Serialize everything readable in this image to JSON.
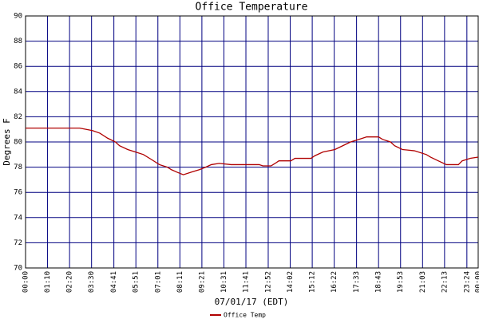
{
  "chart_data": {
    "type": "line",
    "title": "Office Temperature",
    "xlabel": "07/01/17 (EDT)",
    "ylabel": "Degrees F",
    "x": [
      0,
      172,
      213,
      236,
      261,
      286,
      299,
      325,
      350,
      375,
      401,
      426,
      451,
      464,
      482,
      502,
      527,
      553,
      573,
      591,
      616,
      654,
      705,
      743,
      755,
      781,
      794,
      806,
      844,
      857,
      908,
      920,
      946,
      984,
      1009,
      1034,
      1060,
      1085,
      1123,
      1136,
      1161,
      1174,
      1199,
      1237,
      1275,
      1288,
      1313,
      1339,
      1377,
      1389,
      1415,
      1440
    ],
    "series": [
      {
        "name": "Office Temp",
        "color": "#b00000",
        "values": [
          81.1,
          81.1,
          80.9,
          80.7,
          80.3,
          80.0,
          79.7,
          79.4,
          79.2,
          79.0,
          78.6,
          78.2,
          78.0,
          77.8,
          77.6,
          77.4,
          77.6,
          77.8,
          78.0,
          78.2,
          78.3,
          78.2,
          78.2,
          78.2,
          78.1,
          78.1,
          78.3,
          78.5,
          78.5,
          78.7,
          78.7,
          78.9,
          79.2,
          79.4,
          79.7,
          80.0,
          80.2,
          80.4,
          80.4,
          80.2,
          80.0,
          79.7,
          79.4,
          79.3,
          79.0,
          78.8,
          78.5,
          78.2,
          78.2,
          78.5,
          78.7,
          78.8
        ]
      }
    ],
    "xlim": [
      0,
      1440
    ],
    "xticks": [
      {
        "value": 0,
        "label": "00:00"
      },
      {
        "value": 70,
        "label": "01:10"
      },
      {
        "value": 140,
        "label": "02:20"
      },
      {
        "value": 210,
        "label": "03:30"
      },
      {
        "value": 281,
        "label": "04:41"
      },
      {
        "value": 351,
        "label": "05:51"
      },
      {
        "value": 421,
        "label": "07:01"
      },
      {
        "value": 491,
        "label": "08:11"
      },
      {
        "value": 561,
        "label": "09:21"
      },
      {
        "value": 631,
        "label": "10:31"
      },
      {
        "value": 701,
        "label": "11:41"
      },
      {
        "value": 772,
        "label": "12:52"
      },
      {
        "value": 842,
        "label": "14:02"
      },
      {
        "value": 912,
        "label": "15:12"
      },
      {
        "value": 982,
        "label": "16:22"
      },
      {
        "value": 1053,
        "label": "17:33"
      },
      {
        "value": 1123,
        "label": "18:43"
      },
      {
        "value": 1193,
        "label": "19:53"
      },
      {
        "value": 1263,
        "label": "21:03"
      },
      {
        "value": 1333,
        "label": "22:13"
      },
      {
        "value": 1404,
        "label": "23:24"
      },
      {
        "value": 1440,
        "label": "00:00"
      }
    ],
    "ylim": [
      70,
      90
    ],
    "yticks": [
      70,
      72,
      74,
      76,
      78,
      80,
      82,
      84,
      86,
      88,
      90
    ],
    "grid": true,
    "grid_color": "#000080"
  }
}
